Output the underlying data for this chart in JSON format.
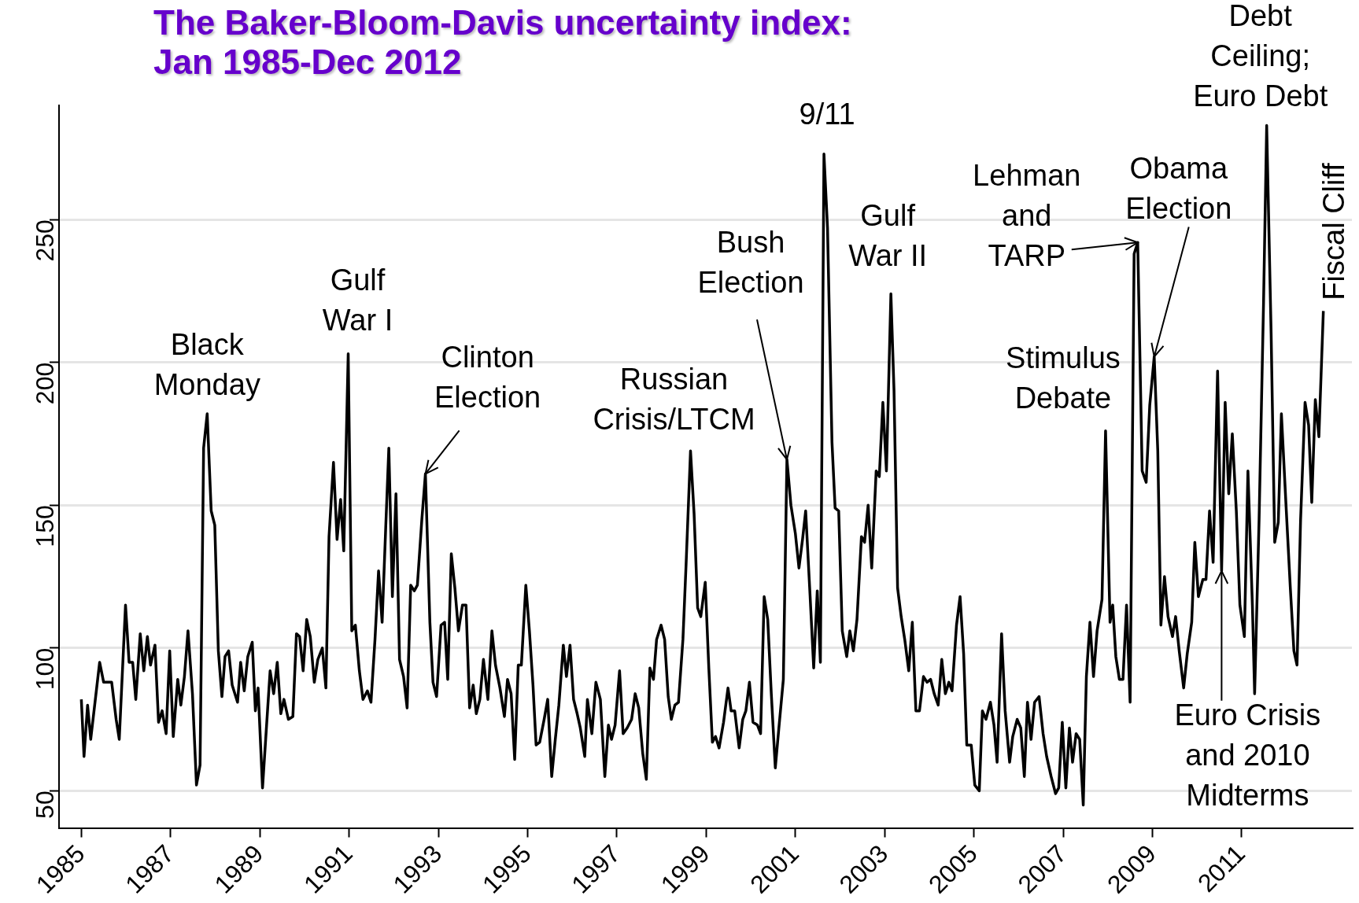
{
  "chart_data": {
    "type": "line",
    "title": "The Baker-Bloom-Davis uncertainty index:\nJan 1985-Dec 2012",
    "color": "#000000",
    "x": [
      1985.0,
      1985.06,
      1985.14,
      1985.21,
      1985.41,
      1985.5,
      1985.68,
      1985.78,
      1985.85,
      1985.99,
      1986.07,
      1986.15,
      1986.22,
      1986.32,
      1986.4,
      1986.48,
      1986.55,
      1986.65,
      1986.73,
      1986.81,
      1986.9,
      1986.98,
      1987.06,
      1987.16,
      1987.23,
      1987.31,
      1987.39,
      1987.49,
      1987.58,
      1987.66,
      1987.74,
      1987.82,
      1987.91,
      1987.99,
      1988.07,
      1988.15,
      1988.22,
      1988.3,
      1988.38,
      1988.5,
      1988.57,
      1988.65,
      1988.73,
      1988.83,
      1988.9,
      1988.96,
      1989.06,
      1989.23,
      1989.31,
      1989.39,
      1989.47,
      1989.54,
      1989.64,
      1989.74,
      1989.82,
      1989.89,
      1989.97,
      1990.05,
      1990.13,
      1990.22,
      1990.3,
      1990.4,
      1990.48,
      1990.55,
      1990.65,
      1990.73,
      1990.81,
      1990.88,
      1990.98,
      1991.06,
      1991.14,
      1991.23,
      1991.31,
      1991.41,
      1991.49,
      1991.58,
      1991.66,
      1991.74,
      1991.82,
      1991.89,
      1991.97,
      1992.05,
      1992.13,
      1992.22,
      1992.3,
      1992.38,
      1992.46,
      1992.53,
      1992.63,
      1992.71,
      1992.81,
      1992.88,
      1992.96,
      1993.06,
      1993.14,
      1993.21,
      1993.29,
      1993.37,
      1993.45,
      1993.54,
      1993.62,
      1993.7,
      1993.78,
      1993.85,
      1993.93,
      1994.01,
      1994.11,
      1994.2,
      1994.28,
      1994.38,
      1994.48,
      1994.55,
      1994.63,
      1994.71,
      1994.79,
      1994.86,
      1994.96,
      1995.04,
      1995.12,
      1995.19,
      1995.27,
      1995.37,
      1995.45,
      1995.54,
      1995.62,
      1995.7,
      1995.8,
      1995.87,
      1995.95,
      1996.03,
      1996.11,
      1996.18,
      1996.28,
      1996.34,
      1996.44,
      1996.53,
      1996.63,
      1996.73,
      1996.81,
      1996.88,
      1996.96,
      1997.06,
      1997.14,
      1997.23,
      1997.33,
      1997.41,
      1997.49,
      1997.58,
      1997.66,
      1997.74,
      1997.82,
      1997.89,
      1997.99,
      1998.07,
      1998.15,
      1998.22,
      1998.3,
      1998.38,
      1998.48,
      1998.55,
      1998.65,
      1998.73,
      1998.81,
      1998.88,
      1998.98,
      1999.06,
      1999.14,
      1999.21,
      1999.29,
      1999.39,
      1999.49,
      1999.56,
      1999.64,
      1999.74,
      1999.82,
      1999.89,
      1999.97,
      2000.05,
      2000.15,
      2000.22,
      2000.3,
      2000.38,
      2000.46,
      2000.55,
      2000.63,
      2000.73,
      2000.81,
      2000.9,
      2001.0,
      2001.08,
      2001.16,
      2001.23,
      2001.33,
      2001.41,
      2001.49,
      2001.56,
      2001.64,
      2001.72,
      2001.82,
      2001.89,
      2001.97,
      2002.05,
      2002.15,
      2002.22,
      2002.3,
      2002.38,
      2002.48,
      2002.55,
      2002.63,
      2002.71,
      2002.81,
      2002.88,
      2002.96,
      2003.04,
      2003.14,
      2003.21,
      2003.29,
      2003.37,
      2003.45,
      2003.54,
      2003.62,
      2003.7,
      2003.78,
      2003.87,
      2003.95,
      2004.03,
      2004.11,
      2004.2,
      2004.28,
      2004.36,
      2004.44,
      2004.51,
      2004.61,
      2004.69,
      2004.77,
      2004.84,
      2004.94,
      2005.02,
      2005.12,
      2005.19,
      2005.27,
      2005.37,
      2005.45,
      2005.52,
      2005.62,
      2005.7,
      2005.8,
      2005.87,
      2005.97,
      2006.05,
      2006.13,
      2006.2,
      2006.28,
      2006.36,
      2006.46,
      2006.55,
      2006.63,
      2006.73,
      2006.83,
      2006.9,
      2006.98,
      2007.06,
      2007.14,
      2007.21,
      2007.29,
      2007.37,
      2007.45,
      2007.52,
      2007.6,
      2007.68,
      2007.76,
      2007.87,
      2007.95,
      2008.05,
      2008.11,
      2008.18,
      2008.26,
      2008.34,
      2008.42,
      2008.5,
      2008.59,
      2008.67,
      2008.77,
      2008.86,
      2008.94,
      2009.04,
      2009.12,
      2009.19,
      2009.27,
      2009.35,
      2009.45,
      2009.52,
      2009.6,
      2009.7,
      2009.78,
      2009.88,
      2009.95,
      2010.03,
      2010.13,
      2010.2,
      2010.28,
      2010.36,
      2010.46,
      2010.55,
      2010.63,
      2010.71,
      2010.79,
      2010.88,
      2010.96,
      2011.06,
      2011.14,
      2011.24,
      2011.29,
      2011.39,
      2011.49,
      2011.56,
      2011.66,
      2011.74,
      2011.82,
      2011.89,
      2011.99,
      2012.09,
      2012.17,
      2012.24,
      2012.32,
      2012.42,
      2012.5,
      2012.57,
      2012.65,
      2012.73,
      2012.83
    ],
    "values": [
      82,
      62,
      80,
      68,
      95,
      88,
      88,
      75,
      68,
      115,
      95,
      95,
      82,
      105,
      92,
      104,
      94,
      101,
      74,
      78,
      70,
      99,
      69,
      89,
      80,
      90,
      106,
      84,
      52,
      59,
      170,
      182,
      148,
      143,
      99,
      83,
      97,
      99,
      87,
      81,
      95,
      85,
      97,
      102,
      78,
      86,
      51,
      92,
      84,
      95,
      77,
      82,
      75,
      76,
      105,
      104,
      92,
      110,
      104,
      88,
      96,
      100,
      86,
      139,
      165,
      138,
      152,
      134,
      203,
      106,
      108,
      92,
      82,
      85,
      81,
      103,
      127,
      109,
      142,
      170,
      118,
      154,
      96,
      90,
      79,
      122,
      120,
      122,
      145,
      161,
      109,
      88,
      83,
      108,
      109,
      89,
      133,
      121,
      106,
      115,
      115,
      79,
      87,
      77,
      82,
      96,
      82,
      106,
      94,
      86,
      76,
      89,
      84,
      61,
      94,
      94,
      122,
      106,
      87,
      66,
      67,
      75,
      82,
      55,
      68,
      80,
      101,
      90,
      101,
      82,
      77,
      72,
      62,
      82,
      70,
      88,
      82,
      55,
      73,
      68,
      73,
      92,
      70,
      72,
      75,
      84,
      79,
      63,
      54,
      93,
      89,
      103,
      108,
      103,
      83,
      75,
      80,
      81,
      103,
      129,
      169,
      147,
      114,
      111,
      123,
      93,
      67,
      69,
      65,
      74,
      86,
      78,
      78,
      65,
      75,
      78,
      88,
      74,
      73,
      70,
      118,
      110,
      84,
      58,
      72,
      89,
      166,
      150,
      140,
      128,
      138,
      148,
      118,
      93,
      120,
      95,
      273,
      247,
      172,
      149,
      148,
      106,
      97,
      106,
      99,
      110,
      139,
      137,
      150,
      128,
      162,
      160,
      186,
      162,
      224,
      190,
      121,
      111,
      103,
      92,
      109,
      78,
      78,
      90,
      88,
      89,
      84,
      80,
      96,
      84,
      88,
      85,
      108,
      118,
      98,
      66,
      66,
      52,
      50,
      78,
      75,
      81,
      73,
      60,
      105,
      78,
      60,
      69,
      75,
      72,
      55,
      81,
      68,
      81,
      83,
      70,
      62,
      55,
      49,
      51,
      74,
      51,
      72,
      60,
      70,
      68,
      45,
      90,
      109,
      90,
      106,
      117,
      176,
      109,
      115,
      97,
      89,
      89,
      115,
      81,
      238,
      242,
      162,
      158,
      185,
      202,
      169,
      108,
      125,
      111,
      104,
      111,
      99,
      86,
      98,
      109,
      137,
      118,
      124,
      124,
      148,
      130,
      197,
      127,
      186,
      154,
      175,
      148,
      115,
      104,
      162,
      115,
      84,
      145,
      221,
      283,
      210,
      137,
      144,
      182,
      151,
      121,
      99,
      94,
      145,
      186,
      178,
      151,
      187,
      174,
      218
    ],
    "xlim": [
      1984.5,
      2013.47
    ],
    "ylim": [
      37,
      290
    ],
    "xticks": [
      1985,
      1987,
      1989,
      1991,
      1993,
      1995,
      1997,
      1999,
      2001,
      2003,
      2005,
      2007,
      2009,
      2011
    ],
    "yticks": [
      50,
      100,
      150,
      200,
      250
    ],
    "grid": "y",
    "annotations": [
      {
        "text": "Black\nMonday",
        "x": 1987.82,
        "y": 182
      },
      {
        "text": "Gulf\nWar I",
        "x": 1990.98,
        "y": 203
      },
      {
        "text": "Clinton\nElection",
        "x": 1992.71,
        "y": 161
      },
      {
        "text": "Russian\nCrisis/LTCM",
        "x": 1998.65,
        "y": 169
      },
      {
        "text": "Bush\nElection",
        "x": 2000.81,
        "y": 166
      },
      {
        "text": "9/11",
        "x": 2001.64,
        "y": 273
      },
      {
        "text": "Gulf\nWar II",
        "x": 2003.14,
        "y": 224
      },
      {
        "text": "Lehman\nand\nTARP",
        "x": 2008.67,
        "y": 242
      },
      {
        "text": "Stimulus\nDebate",
        "x": 2007.95,
        "y": 176
      },
      {
        "text": "Obama\nElection",
        "x": 2009.04,
        "y": 202
      },
      {
        "text": "Debt\nCeiling;\nEuro Debt",
        "x": 2011.56,
        "y": 283
      },
      {
        "text": "Fiscal Cliff",
        "x": 2012.83,
        "y": 218
      },
      {
        "text": "Euro Crisis\nand 2010\nMidterms",
        "x": 2010.55,
        "y": 127
      }
    ]
  }
}
